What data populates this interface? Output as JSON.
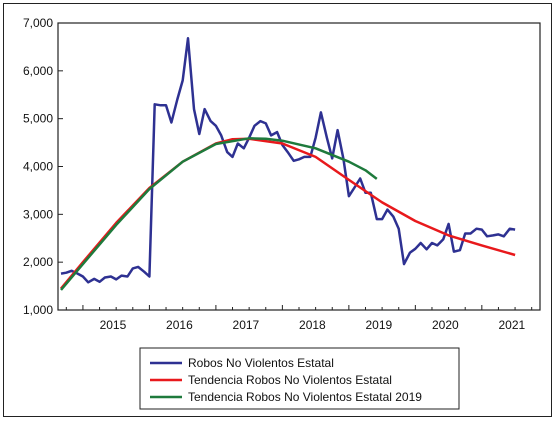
{
  "chart_data": {
    "type": "line",
    "title": "",
    "xlabel": "",
    "ylabel": "",
    "xlim": [
      2014.625,
      2021.875
    ],
    "ylim": [
      1000,
      7000
    ],
    "y_ticks": [
      1000,
      2000,
      3000,
      4000,
      5000,
      6000,
      7000
    ],
    "y_tick_labels": [
      "1,000",
      "2,000",
      "3,000",
      "4,000",
      "5,000",
      "6,000",
      "7,000"
    ],
    "x_ticks": [
      2015,
      2016,
      2017,
      2018,
      2019,
      2020,
      2021
    ],
    "x_tick_labels": [
      "2015",
      "2016",
      "2017",
      "2018",
      "2019",
      "2020",
      "2021"
    ],
    "grid": false,
    "legend_position": "bottom-center",
    "series": [
      {
        "name": "Robos No Violentos Estatal",
        "color": "#2e3192",
        "points": [
          [
            2014.67,
            1760
          ],
          [
            2014.75,
            1780
          ],
          [
            2014.83,
            1820
          ],
          [
            2014.92,
            1760
          ],
          [
            2015.0,
            1700
          ],
          [
            2015.08,
            1580
          ],
          [
            2015.17,
            1650
          ],
          [
            2015.25,
            1590
          ],
          [
            2015.33,
            1680
          ],
          [
            2015.42,
            1700
          ],
          [
            2015.5,
            1640
          ],
          [
            2015.58,
            1720
          ],
          [
            2015.67,
            1700
          ],
          [
            2015.75,
            1870
          ],
          [
            2015.83,
            1900
          ],
          [
            2015.92,
            1800
          ],
          [
            2016.0,
            1700
          ],
          [
            2016.08,
            5300
          ],
          [
            2016.17,
            5280
          ],
          [
            2016.25,
            5280
          ],
          [
            2016.33,
            4920
          ],
          [
            2016.42,
            5400
          ],
          [
            2016.5,
            5800
          ],
          [
            2016.58,
            6680
          ],
          [
            2016.67,
            5200
          ],
          [
            2016.75,
            4680
          ],
          [
            2016.83,
            5200
          ],
          [
            2016.92,
            4950
          ],
          [
            2017.0,
            4850
          ],
          [
            2017.08,
            4650
          ],
          [
            2017.17,
            4300
          ],
          [
            2017.25,
            4200
          ],
          [
            2017.33,
            4480
          ],
          [
            2017.42,
            4380
          ],
          [
            2017.5,
            4600
          ],
          [
            2017.58,
            4850
          ],
          [
            2017.67,
            4950
          ],
          [
            2017.75,
            4900
          ],
          [
            2017.83,
            4650
          ],
          [
            2017.92,
            4720
          ],
          [
            2018.0,
            4450
          ],
          [
            2018.08,
            4300
          ],
          [
            2018.17,
            4120
          ],
          [
            2018.25,
            4150
          ],
          [
            2018.33,
            4200
          ],
          [
            2018.42,
            4200
          ],
          [
            2018.5,
            4600
          ],
          [
            2018.58,
            5130
          ],
          [
            2018.67,
            4600
          ],
          [
            2018.75,
            4170
          ],
          [
            2018.83,
            4760
          ],
          [
            2018.92,
            4150
          ],
          [
            2019.0,
            3380
          ],
          [
            2019.08,
            3550
          ],
          [
            2019.17,
            3750
          ],
          [
            2019.25,
            3450
          ],
          [
            2019.33,
            3450
          ],
          [
            2019.42,
            2900
          ],
          [
            2019.5,
            2900
          ],
          [
            2019.58,
            3100
          ],
          [
            2019.67,
            2950
          ],
          [
            2019.75,
            2700
          ],
          [
            2019.83,
            1960
          ],
          [
            2019.92,
            2200
          ],
          [
            2020.0,
            2280
          ],
          [
            2020.08,
            2400
          ],
          [
            2020.17,
            2270
          ],
          [
            2020.25,
            2400
          ],
          [
            2020.33,
            2350
          ],
          [
            2020.42,
            2480
          ],
          [
            2020.5,
            2800
          ],
          [
            2020.58,
            2220
          ],
          [
            2020.67,
            2250
          ],
          [
            2020.75,
            2600
          ],
          [
            2020.83,
            2600
          ],
          [
            2020.92,
            2700
          ],
          [
            2021.0,
            2680
          ],
          [
            2021.08,
            2540
          ],
          [
            2021.17,
            2560
          ],
          [
            2021.25,
            2580
          ],
          [
            2021.33,
            2540
          ],
          [
            2021.42,
            2700
          ],
          [
            2021.5,
            2680
          ]
        ]
      },
      {
        "name": "Tendencia Robos No Violentos Estatal",
        "color": "#e8191c",
        "points": [
          [
            2014.67,
            1450
          ],
          [
            2015.0,
            2000
          ],
          [
            2015.5,
            2820
          ],
          [
            2016.0,
            3550
          ],
          [
            2016.5,
            4100
          ],
          [
            2017.0,
            4480
          ],
          [
            2017.25,
            4570
          ],
          [
            2017.5,
            4580
          ],
          [
            2018.0,
            4480
          ],
          [
            2018.5,
            4200
          ],
          [
            2019.0,
            3720
          ],
          [
            2019.5,
            3250
          ],
          [
            2020.0,
            2860
          ],
          [
            2020.5,
            2560
          ],
          [
            2021.0,
            2350
          ],
          [
            2021.5,
            2150
          ]
        ]
      },
      {
        "name": "Tendencia Robos No Violentos Estatal 2019",
        "color": "#1e7a3c",
        "points": [
          [
            2014.67,
            1420
          ],
          [
            2015.0,
            1960
          ],
          [
            2015.5,
            2780
          ],
          [
            2016.0,
            3530
          ],
          [
            2016.5,
            4100
          ],
          [
            2017.0,
            4470
          ],
          [
            2017.5,
            4590
          ],
          [
            2017.75,
            4580
          ],
          [
            2018.0,
            4540
          ],
          [
            2018.5,
            4380
          ],
          [
            2019.0,
            4100
          ],
          [
            2019.25,
            3920
          ],
          [
            2019.42,
            3740
          ]
        ]
      }
    ]
  }
}
